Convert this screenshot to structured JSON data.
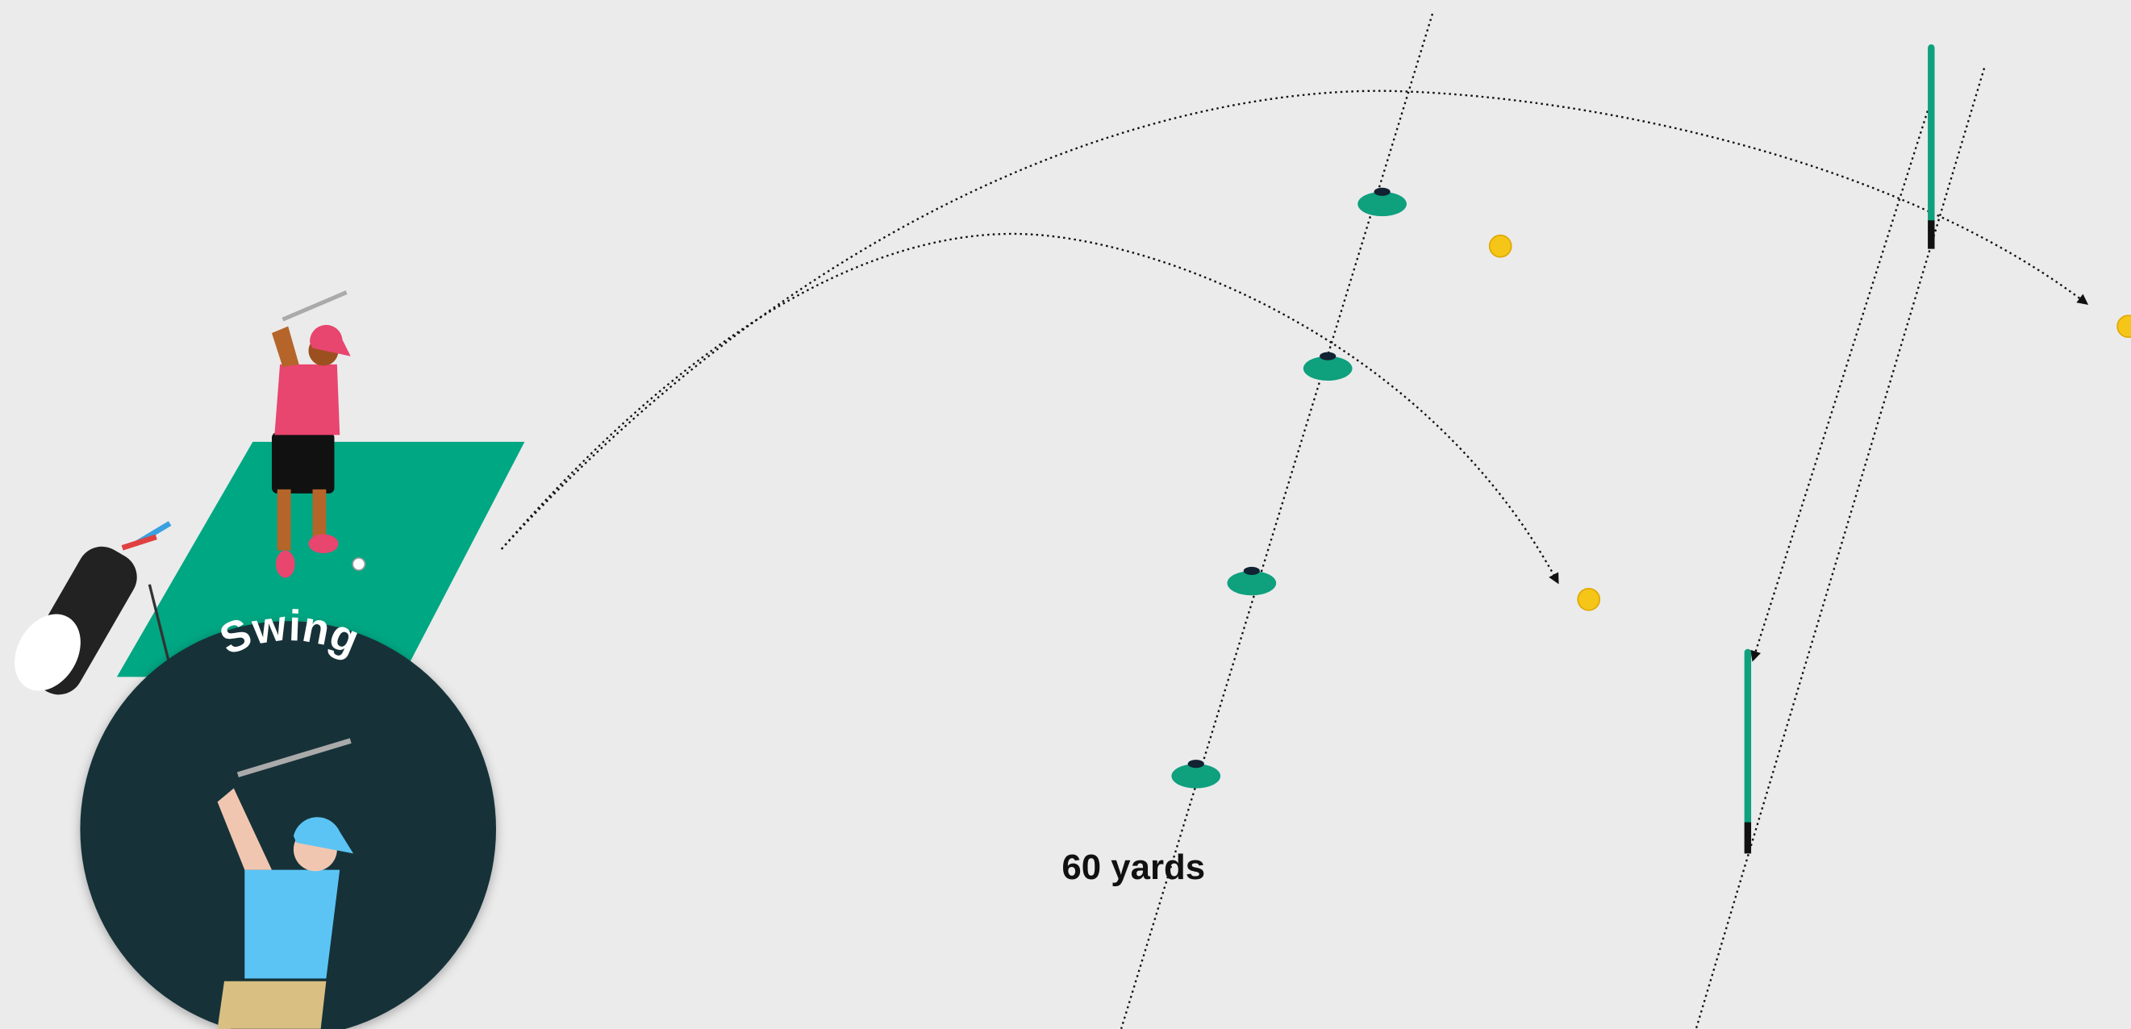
{
  "button": {
    "label": "Swing"
  },
  "annotation": {
    "distance_label": "60 yards"
  }
}
